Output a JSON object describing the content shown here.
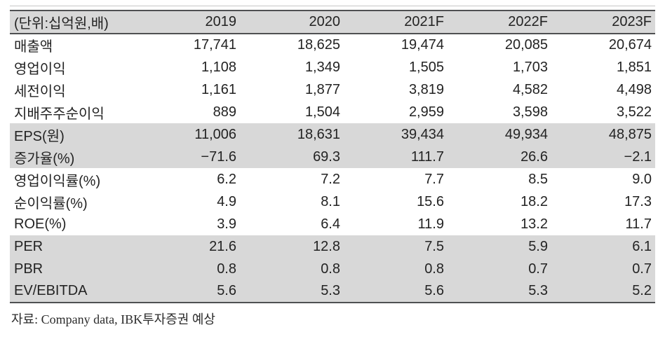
{
  "colors": {
    "shaded_band": "#d8d8d8",
    "rule_dark": "#4f5052",
    "rule_light": "#c6c6c6",
    "text": "#232323"
  },
  "table": {
    "unit_label": "(단위:십억원,배)",
    "years": [
      "2019",
      "2020",
      "2021F",
      "2022F",
      "2023F"
    ],
    "rows": [
      {
        "label": "매출액",
        "values": [
          "17,741",
          "18,625",
          "19,474",
          "20,085",
          "20,674"
        ]
      },
      {
        "label": "영업이익",
        "values": [
          "1,108",
          "1,349",
          "1,505",
          "1,703",
          "1,851"
        ]
      },
      {
        "label": "세전이익",
        "values": [
          "1,161",
          "1,877",
          "3,819",
          "4,582",
          "4,498"
        ]
      },
      {
        "label": "지배주주순이익",
        "values": [
          "889",
          "1,504",
          "2,959",
          "3,598",
          "3,522"
        ]
      },
      {
        "label": "EPS(원)",
        "values": [
          "11,006",
          "18,631",
          "39,434",
          "49,934",
          "48,875"
        ]
      },
      {
        "label": "증가율(%)",
        "values": [
          "−71.6",
          "69.3",
          "111.7",
          "26.6",
          "−2.1"
        ]
      },
      {
        "label": "영업이익률(%)",
        "values": [
          "6.2",
          "7.2",
          "7.7",
          "8.5",
          "9.0"
        ]
      },
      {
        "label": "순이익률(%)",
        "values": [
          "4.9",
          "8.1",
          "15.6",
          "18.2",
          "17.3"
        ]
      },
      {
        "label": "ROE(%)",
        "values": [
          "3.9",
          "6.4",
          "11.9",
          "13.2",
          "11.7"
        ]
      },
      {
        "label": "PER",
        "values": [
          "21.6",
          "12.8",
          "7.5",
          "5.9",
          "6.1"
        ]
      },
      {
        "label": "PBR",
        "values": [
          "0.8",
          "0.8",
          "0.8",
          "0.7",
          "0.7"
        ]
      },
      {
        "label": "EV/EBITDA",
        "values": [
          "5.6",
          "5.3",
          "5.6",
          "5.3",
          "5.2"
        ]
      }
    ]
  },
  "footer": {
    "source_note": "자료: Company data, IBK투자증권 예상"
  }
}
